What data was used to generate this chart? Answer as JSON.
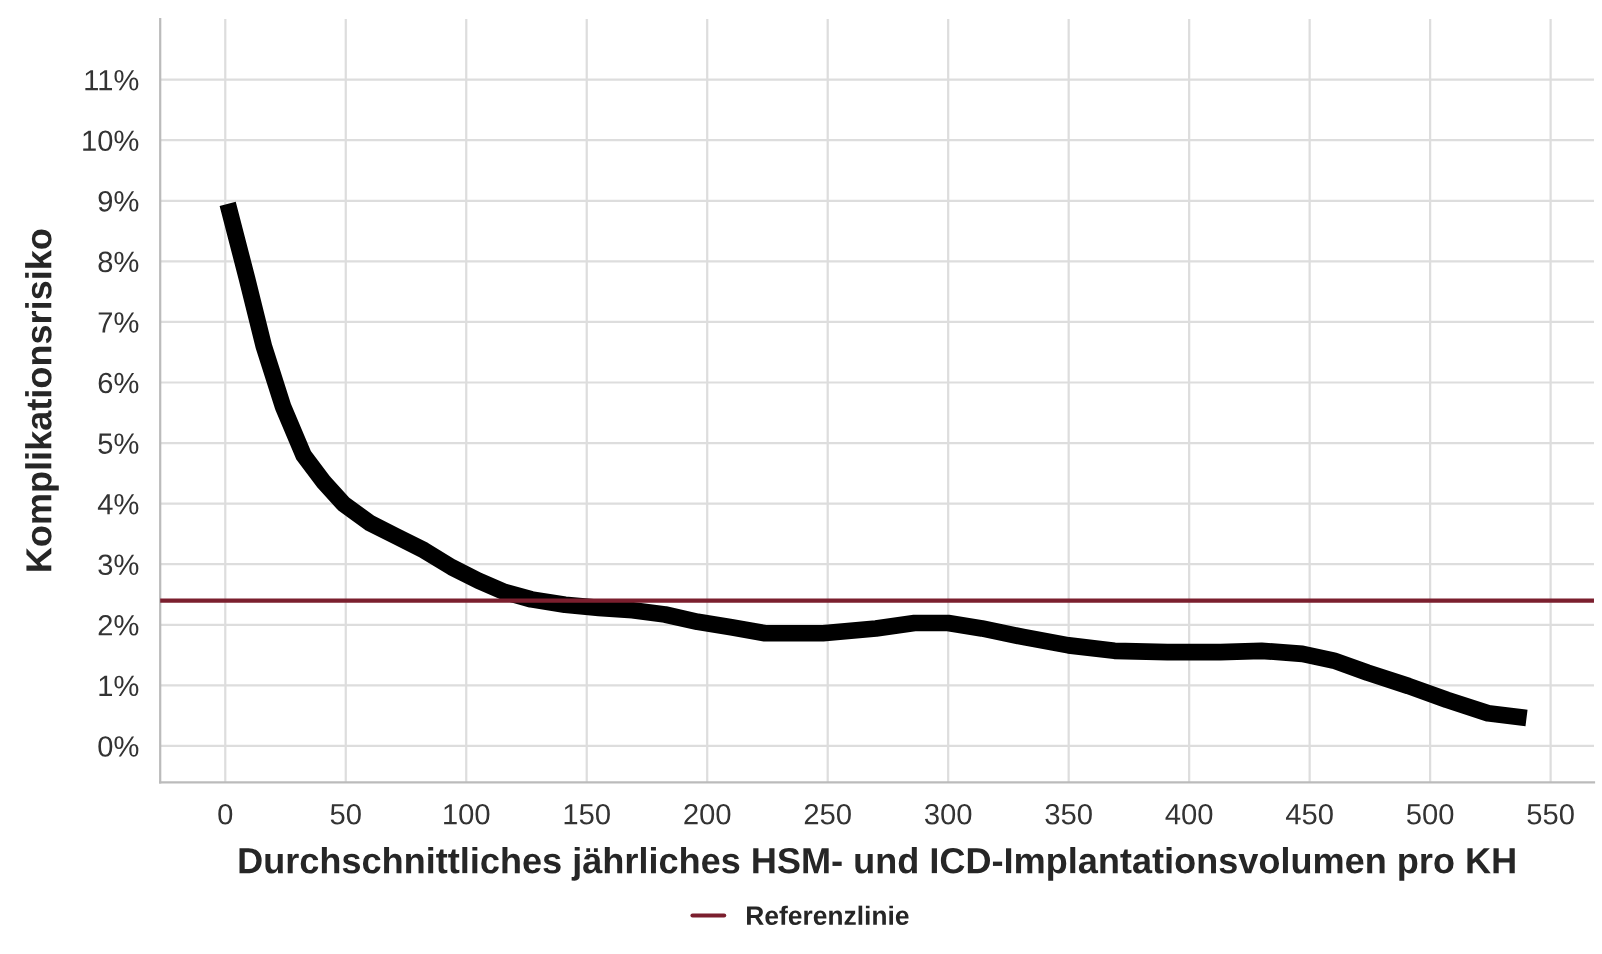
{
  "chart_data": {
    "type": "line",
    "xlabel": "Durchschnittliches jährliches HSM- und ICD-Implantationsvolumen pro KH",
    "ylabel": "Komplikationsrisiko",
    "series": [
      {
        "color": "#000000",
        "x": [
          1,
          9,
          16,
          24,
          32.5,
          41,
          49,
          60,
          71,
          82.5,
          94,
          105,
          116,
          127,
          141,
          155,
          169,
          182.5,
          196,
          210,
          224,
          248,
          270,
          286,
          300,
          314,
          331,
          350,
          369,
          391,
          413,
          430,
          447,
          460,
          474,
          491,
          507,
          524,
          540
        ],
        "values": [
          8.95,
          7.72,
          6.6,
          5.6,
          4.8,
          4.35,
          4.0,
          3.68,
          3.46,
          3.23,
          2.95,
          2.73,
          2.54,
          2.42,
          2.33,
          2.28,
          2.24,
          2.17,
          2.05,
          1.96,
          1.86,
          1.86,
          1.94,
          2.03,
          2.03,
          1.94,
          1.8,
          1.66,
          1.57,
          1.55,
          1.55,
          1.57,
          1.52,
          1.41,
          1.21,
          0.99,
          0.76,
          0.54,
          0.46
        ]
      }
    ],
    "ref_lines": [
      {
        "axis": "y",
        "value": 2.4,
        "label": "Referenzlinie",
        "color": "#7b1f2e"
      }
    ],
    "xlim": [
      -27,
      568
    ],
    "xticks": [
      0,
      50,
      100,
      150,
      200,
      250,
      300,
      350,
      400,
      450,
      500,
      550
    ],
    "ylim": [
      -0.6,
      12
    ],
    "yticks": [
      {
        "value": 0,
        "label": "0%"
      },
      {
        "value": 1,
        "label": "1%"
      },
      {
        "value": 2,
        "label": "2%"
      },
      {
        "value": 3,
        "label": "3%"
      },
      {
        "value": 4,
        "label": "4%"
      },
      {
        "value": 5,
        "label": "5%"
      },
      {
        "value": 6,
        "label": "6%"
      },
      {
        "value": 7,
        "label": "7%"
      },
      {
        "value": 8,
        "label": "8%"
      },
      {
        "value": 9,
        "label": "9%"
      },
      {
        "value": 10,
        "label": "10%"
      },
      {
        "value": 11,
        "label": "11%"
      }
    ],
    "grid": true,
    "legend": "bottom",
    "line_style": "solid",
    "marker": "none"
  }
}
